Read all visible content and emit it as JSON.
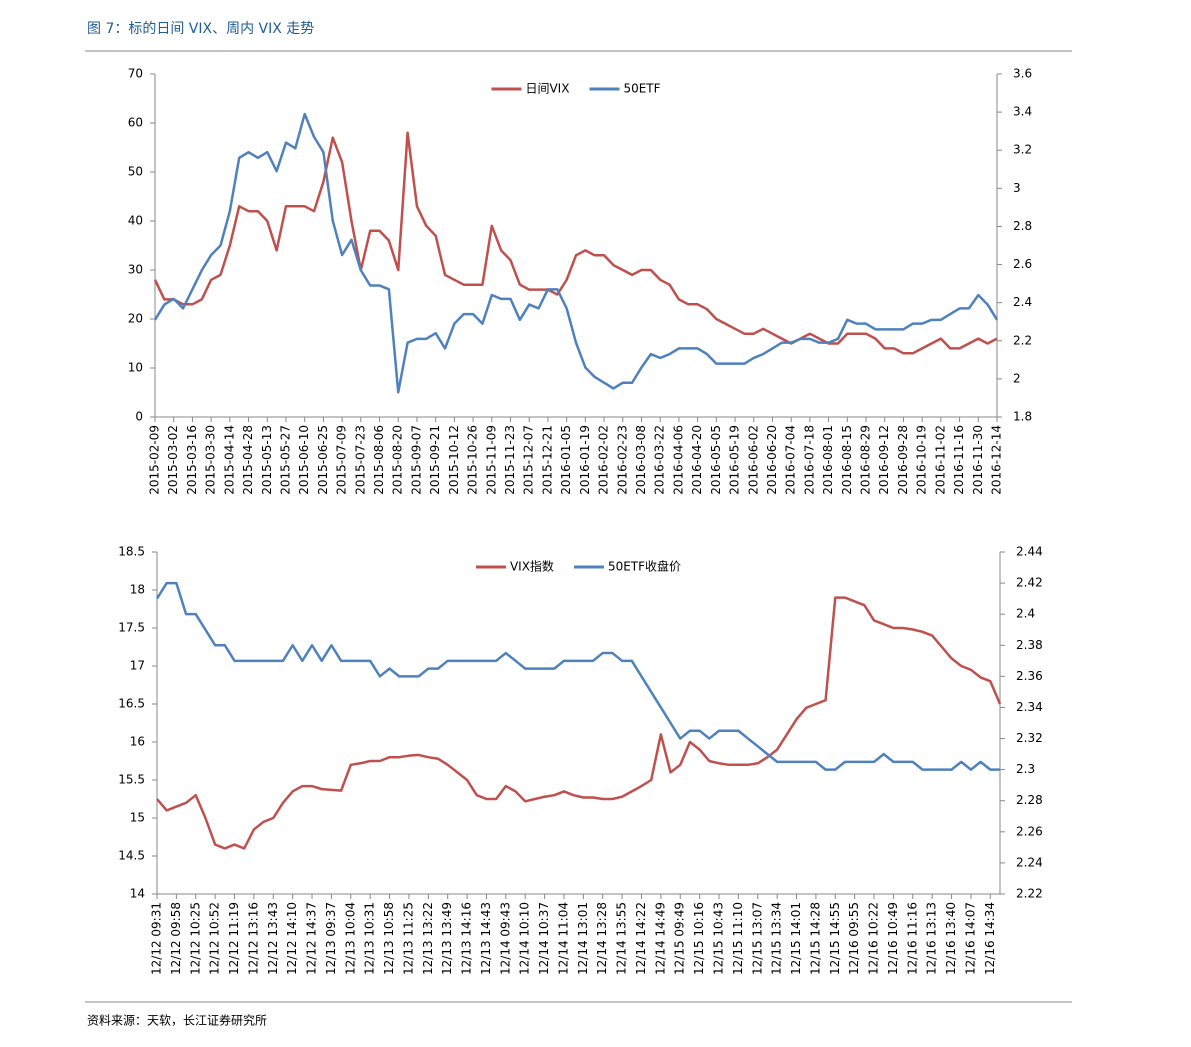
{
  "header": {
    "title": "图 7：标的日间 VIX、周内 VIX 走势"
  },
  "footer": {
    "source": "资料来源：天软，长江证券研究所"
  },
  "chart_data": [
    {
      "type": "line",
      "categories": [
        "2015-02-09",
        null,
        "2015-03-02",
        null,
        "2015-03-16",
        null,
        "2015-03-30",
        null,
        "2015-04-14",
        null,
        "2015-04-28",
        null,
        "2015-05-13",
        null,
        "2015-05-27",
        null,
        "2015-06-10",
        null,
        "2015-06-25",
        null,
        "2015-07-09",
        null,
        "2015-07-23",
        null,
        "2015-08-06",
        null,
        "2015-08-20",
        null,
        "2015-09-07",
        null,
        "2015-09-21",
        null,
        "2015-10-12",
        null,
        "2015-10-26",
        null,
        "2015-11-09",
        null,
        "2015-11-23",
        null,
        "2015-12-07",
        null,
        "2015-12-21",
        null,
        "2016-01-05",
        null,
        "2016-01-19",
        null,
        "2016-02-02",
        null,
        "2016-02-23",
        null,
        "2016-03-08",
        null,
        "2016-03-22",
        null,
        "2016-04-06",
        null,
        "2016-04-20",
        null,
        "2016-05-05",
        null,
        "2016-05-19",
        null,
        "2016-06-02",
        null,
        "2016-06-20",
        null,
        "2016-07-04",
        null,
        "2016-07-18",
        null,
        "2016-08-01",
        null,
        "2016-08-15",
        null,
        "2016-08-29",
        null,
        "2016-09-12",
        null,
        "2016-09-28",
        null,
        "2016-10-19",
        null,
        "2016-11-02",
        null,
        "2016-11-16",
        null,
        "2016-11-30",
        null,
        "2016-12-14"
      ],
      "series": [
        {
          "name": "日间VIX",
          "color": "#c0504d",
          "values": [
            28,
            24,
            24,
            23,
            23,
            24,
            28,
            29,
            35,
            43,
            42,
            42,
            40,
            34,
            43,
            43,
            43,
            42,
            48,
            57,
            52,
            40,
            30,
            38,
            38,
            36,
            30,
            58,
            43,
            39,
            37,
            29,
            28,
            27,
            27,
            27,
            39,
            34,
            32,
            27,
            26,
            26,
            26,
            25,
            28,
            33,
            34,
            33,
            33,
            31,
            30,
            29,
            30,
            30,
            28,
            27,
            24,
            23,
            23,
            22,
            20,
            19,
            18,
            17,
            17,
            18,
            17,
            16,
            15,
            16,
            17,
            16,
            15,
            15,
            17,
            17,
            17,
            16,
            14,
            14,
            13,
            13,
            14,
            15,
            16,
            14,
            14,
            15,
            16,
            15,
            16
          ]
        },
        {
          "name": "50ETF",
          "color": "#4f81bd",
          "axis": "y2",
          "values": [
            2.31,
            2.39,
            2.42,
            2.37,
            2.47,
            2.57,
            2.65,
            2.7,
            2.88,
            3.16,
            3.19,
            3.16,
            3.19,
            3.09,
            3.24,
            3.21,
            3.39,
            3.27,
            3.19,
            2.83,
            2.65,
            2.73,
            2.57,
            2.49,
            2.49,
            2.47,
            1.93,
            2.19,
            2.21,
            2.21,
            2.24,
            2.16,
            2.29,
            2.34,
            2.34,
            2.29,
            2.44,
            2.42,
            2.42,
            2.31,
            2.39,
            2.37,
            2.47,
            2.47,
            2.37,
            2.19,
            2.06,
            2.01,
            1.98,
            1.95,
            1.98,
            1.98,
            2.06,
            2.13,
            2.11,
            2.13,
            2.16,
            2.16,
            2.16,
            2.13,
            2.08,
            2.08,
            2.08,
            2.08,
            2.11,
            2.13,
            2.16,
            2.19,
            2.19,
            2.21,
            2.21,
            2.19,
            2.19,
            2.21,
            2.31,
            2.29,
            2.29,
            2.26,
            2.26,
            2.26,
            2.26,
            2.29,
            2.29,
            2.31,
            2.31,
            2.34,
            2.37,
            2.37,
            2.44,
            2.39,
            2.31
          ]
        }
      ],
      "ylim": [
        0,
        70
      ],
      "yticks": [
        0,
        10,
        20,
        30,
        40,
        50,
        60,
        70
      ],
      "y2lim": [
        1.8,
        3.6
      ],
      "y2ticks": [
        1.8,
        2,
        2.2,
        2.4,
        2.6,
        2.8,
        3,
        3.2,
        3.4,
        3.6
      ],
      "legend": "top"
    },
    {
      "type": "line",
      "categories": [
        "12/12 09:31",
        null,
        "12/12 09:58",
        null,
        "12/12 10:25",
        null,
        "12/12 10:52",
        null,
        "12/12 11:19",
        null,
        "12/12 13:16",
        null,
        "12/12 13:43",
        null,
        "12/12 14:10",
        null,
        "12/12 14:37",
        null,
        "12/13 09:37",
        null,
        "12/13 10:04",
        null,
        "12/13 10:31",
        null,
        "12/13 10:58",
        null,
        "12/13 11:25",
        null,
        "12/13 13:22",
        null,
        "12/13 13:49",
        null,
        "12/13 14:16",
        null,
        "12/13 14:43",
        null,
        "12/14 09:43",
        null,
        "12/14 10:10",
        null,
        "12/14 10:37",
        null,
        "12/14 11:04",
        null,
        "12/14 13:01",
        null,
        "12/14 13:28",
        null,
        "12/14 13:55",
        null,
        "12/14 14:22",
        null,
        "12/14 14:49",
        null,
        "12/15 09:49",
        null,
        "12/15 10:16",
        null,
        "12/15 10:43",
        null,
        "12/15 11:10",
        null,
        "12/15 13:07",
        null,
        "12/15 13:34",
        null,
        "12/15 14:01",
        null,
        "12/15 14:28",
        null,
        "12/15 14:55",
        null,
        "12/16 09:55",
        null,
        "12/16 10:22",
        null,
        "12/16 10:49",
        null,
        "12/16 11:16",
        null,
        "12/16 13:13",
        null,
        "12/16 13:40",
        null,
        "12/16 14:07",
        null,
        "12/16 14:34",
        null
      ],
      "series": [
        {
          "name": "VIX指数",
          "color": "#c0504d",
          "values": [
            15.25,
            15.1,
            15.15,
            15.2,
            15.3,
            15.0,
            14.65,
            14.6,
            14.65,
            14.6,
            14.85,
            14.95,
            15.0,
            15.2,
            15.35,
            15.42,
            15.42,
            15.38,
            15.37,
            15.36,
            15.7,
            15.72,
            15.75,
            15.75,
            15.8,
            15.8,
            15.82,
            15.83,
            15.8,
            15.78,
            15.7,
            15.6,
            15.5,
            15.3,
            15.25,
            15.25,
            15.42,
            15.35,
            15.22,
            15.25,
            15.28,
            15.3,
            15.35,
            15.3,
            15.27,
            15.27,
            15.25,
            15.25,
            15.28,
            15.35,
            15.42,
            15.5,
            16.1,
            15.6,
            15.7,
            16.0,
            15.9,
            15.75,
            15.72,
            15.7,
            15.7,
            15.7,
            15.72,
            15.8,
            15.9,
            16.1,
            16.3,
            16.45,
            16.5,
            16.55,
            17.9,
            17.9,
            17.85,
            17.8,
            17.6,
            17.55,
            17.5,
            17.5,
            17.48,
            17.45,
            17.4,
            17.25,
            17.1,
            17.0,
            16.95,
            16.85,
            16.8,
            16.5
          ]
        },
        {
          "name": "50ETF收盘价",
          "color": "#4f81bd",
          "axis": "y2",
          "values": [
            2.41,
            2.42,
            2.42,
            2.4,
            2.4,
            2.39,
            2.38,
            2.38,
            2.37,
            2.37,
            2.37,
            2.37,
            2.37,
            2.37,
            2.38,
            2.37,
            2.38,
            2.37,
            2.38,
            2.37,
            2.37,
            2.37,
            2.37,
            2.36,
            2.365,
            2.36,
            2.36,
            2.36,
            2.365,
            2.365,
            2.37,
            2.37,
            2.37,
            2.37,
            2.37,
            2.37,
            2.375,
            2.37,
            2.365,
            2.365,
            2.365,
            2.365,
            2.37,
            2.37,
            2.37,
            2.37,
            2.375,
            2.375,
            2.37,
            2.37,
            2.36,
            2.35,
            2.34,
            2.33,
            2.32,
            2.325,
            2.325,
            2.32,
            2.325,
            2.325,
            2.325,
            2.32,
            2.315,
            2.31,
            2.305,
            2.305,
            2.305,
            2.305,
            2.305,
            2.3,
            2.3,
            2.305,
            2.305,
            2.305,
            2.305,
            2.31,
            2.305,
            2.305,
            2.305,
            2.3,
            2.3,
            2.3,
            2.3,
            2.305,
            2.3,
            2.305,
            2.3,
            2.3
          ]
        }
      ],
      "ylim": [
        14,
        18.5
      ],
      "yticks": [
        14,
        14.5,
        15,
        15.5,
        16,
        16.5,
        17,
        17.5,
        18,
        18.5
      ],
      "y2lim": [
        2.22,
        2.44
      ],
      "y2ticks": [
        2.22,
        2.24,
        2.26,
        2.28,
        2.3,
        2.32,
        2.34,
        2.36,
        2.38,
        2.4,
        2.42,
        2.44
      ],
      "legend": "top"
    }
  ]
}
